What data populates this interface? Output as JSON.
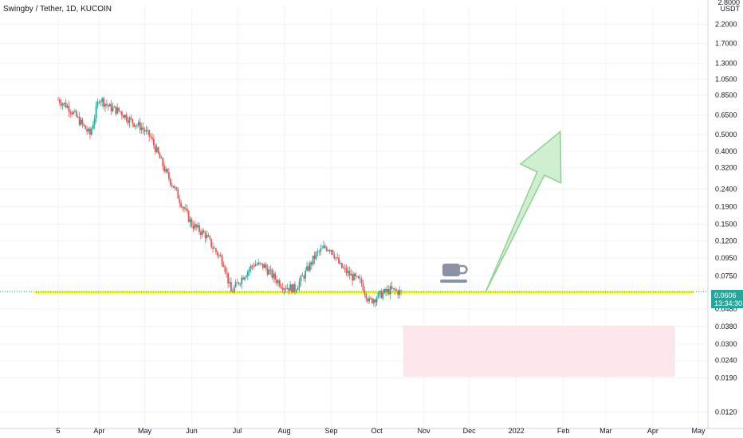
{
  "header": {
    "title": "Swingby / Tether, 1D, KUCOIN"
  },
  "price_axis": {
    "unit_top": "2.8000",
    "unit_label": "USDT"
  },
  "current_price": {
    "value": "0.0606",
    "countdown": "13:34:30",
    "color": "#26a69a"
  },
  "colors": {
    "up": "#26a69a",
    "down": "#ef5350",
    "support": "#f5f200",
    "arrow": "#8fd18f",
    "zone": "#fde7ea"
  },
  "annotation_icon": "coffee-cup-icon",
  "chart_data": {
    "type": "candlestick",
    "title": "Swingby / Tether, 1D, KUCOIN",
    "y_scale": "log",
    "ylim": [
      0.0105,
      2.8
    ],
    "y_ticks": [
      "2.2000",
      "1.7000",
      "1.3000",
      "1.0500",
      "0.8500",
      "0.6500",
      "0.5000",
      "0.4000",
      "0.3200",
      "0.2400",
      "0.1900",
      "0.1500",
      "0.1200",
      "0.0950",
      "0.0750",
      "0.0480",
      "0.0380",
      "0.0300",
      "0.0240",
      "0.0190",
      "0.0120"
    ],
    "x_ticks": [
      "5",
      "Apr",
      "May",
      "Jun",
      "Jul",
      "Aug",
      "Sep",
      "Oct",
      "Nov",
      "Dec",
      "2022",
      "Feb",
      "Mar",
      "Apr",
      "May"
    ],
    "x_range": [
      "2021-03-05",
      "2022-05-01"
    ],
    "support_level": 0.06,
    "buy_zone": {
      "from": "2021-10-19",
      "to": "2022-04-15",
      "low": 0.0195,
      "high": 0.038
    },
    "target_arrow": {
      "from_date": "2021-12-12",
      "from_price": 0.061,
      "to_date": "2022-01-30",
      "to_price": 0.52
    },
    "series": [
      {
        "name": "Swingby / Tether",
        "points": [
          [
            "2021-03-05",
            0.8
          ],
          [
            "2021-03-12",
            0.72
          ],
          [
            "2021-03-19",
            0.6
          ],
          [
            "2021-03-26",
            0.5
          ],
          [
            "2021-04-01",
            0.82
          ],
          [
            "2021-04-08",
            0.72
          ],
          [
            "2021-04-15",
            0.68
          ],
          [
            "2021-04-22",
            0.6
          ],
          [
            "2021-04-29",
            0.55
          ],
          [
            "2021-05-05",
            0.48
          ],
          [
            "2021-05-10",
            0.38
          ],
          [
            "2021-05-15",
            0.3
          ],
          [
            "2021-05-20",
            0.25
          ],
          [
            "2021-05-25",
            0.2
          ],
          [
            "2021-06-01",
            0.15
          ],
          [
            "2021-06-05",
            0.14
          ],
          [
            "2021-06-10",
            0.13
          ],
          [
            "2021-06-15",
            0.11
          ],
          [
            "2021-06-22",
            0.09
          ],
          [
            "2021-06-27",
            0.06
          ],
          [
            "2021-07-05",
            0.075
          ],
          [
            "2021-07-12",
            0.088
          ],
          [
            "2021-07-19",
            0.085
          ],
          [
            "2021-07-26",
            0.072
          ],
          [
            "2021-08-01",
            0.065
          ],
          [
            "2021-08-08",
            0.063
          ],
          [
            "2021-08-15",
            0.078
          ],
          [
            "2021-08-22",
            0.1
          ],
          [
            "2021-08-28",
            0.11
          ],
          [
            "2021-09-01",
            0.108
          ],
          [
            "2021-09-07",
            0.085
          ],
          [
            "2021-09-14",
            0.075
          ],
          [
            "2021-09-21",
            0.068
          ],
          [
            "2021-09-26",
            0.053
          ],
          [
            "2021-10-03",
            0.058
          ],
          [
            "2021-10-10",
            0.062
          ],
          [
            "2021-10-17",
            0.06
          ]
        ]
      }
    ]
  }
}
